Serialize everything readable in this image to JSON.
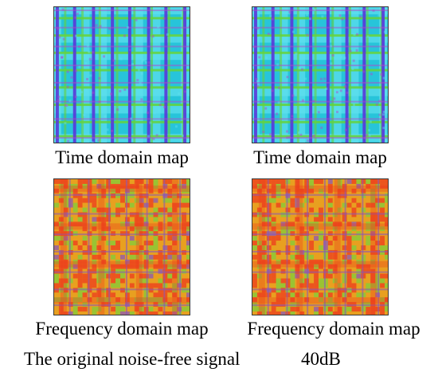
{
  "panels": {
    "time_left": {
      "label": "Time domain map"
    },
    "time_right": {
      "label": "Time domain map"
    },
    "freq_left": {
      "label": "Frequency domain map"
    },
    "freq_right": {
      "label": "Frequency domain map"
    }
  },
  "columns": {
    "left_caption": "The original noise-free signal",
    "right_caption": "40dB"
  },
  "colors": {
    "time_base": "#27c4da",
    "time_band_light": "#5fe0ee",
    "time_band_green": "#66d23a",
    "time_band_purple": "#5a38d8",
    "time_band_magenta": "#b04ac8",
    "freq_base": "#e8a020",
    "freq_red": "#ee3b1e",
    "freq_green": "#7fcf3a",
    "freq_purple": "#8a58b8"
  }
}
